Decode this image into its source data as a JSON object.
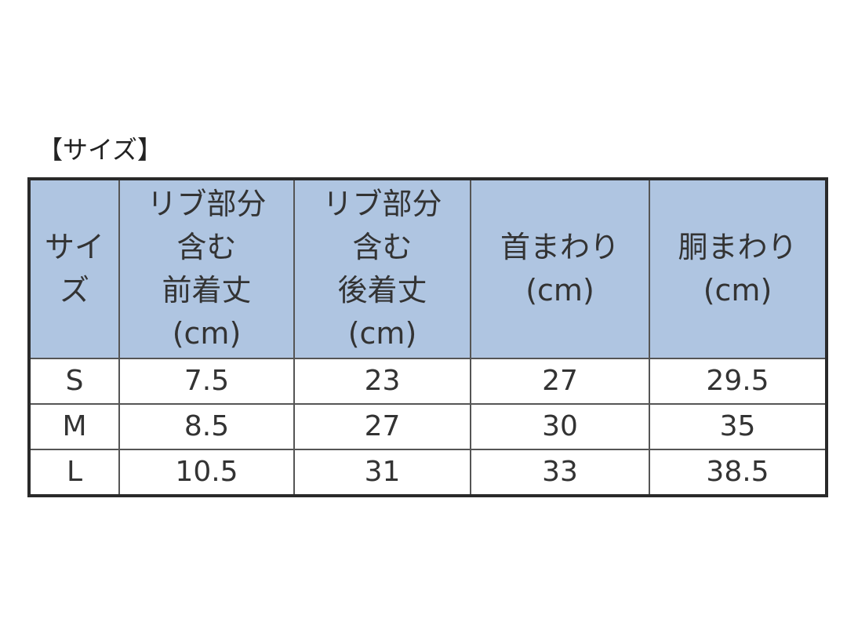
{
  "header": {
    "title": "【サイズ】"
  },
  "table": {
    "columns": [
      [
        "サイ",
        "ズ"
      ],
      [
        "リブ部分",
        "含む",
        "前着丈",
        "(cm)"
      ],
      [
        "リブ部分",
        "含む",
        "後着丈",
        "(cm)"
      ],
      [
        "首まわり",
        "(cm)"
      ],
      [
        "胴まわり",
        "(cm)"
      ]
    ],
    "rows": [
      [
        "S",
        7.5,
        23,
        27,
        29.5
      ],
      [
        "M",
        8.5,
        27,
        30,
        35
      ],
      [
        "L",
        10.5,
        31,
        33,
        38.5
      ]
    ]
  }
}
